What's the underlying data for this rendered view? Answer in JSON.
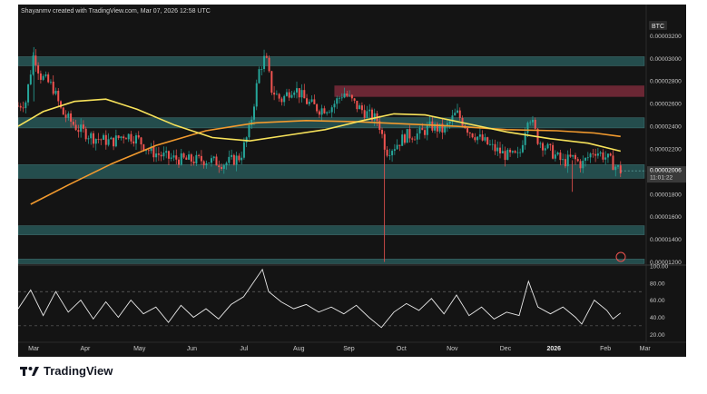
{
  "header": {
    "attribution": "Shayanmv created with TradingView.com, Mar 07, 2026 12:58 UTC"
  },
  "footer": {
    "brand": "TradingView"
  },
  "colors": {
    "background": "#141414",
    "candle_up": "#26a69a",
    "candle_down": "#ef5350",
    "ma_fast": "#f7e25a",
    "ma_slow": "#f29a2e",
    "support_zone": "#2c6b6b",
    "resistance_zone": "#7a2a3a",
    "rsi": "#e8e8e8"
  },
  "chart_data": {
    "type": "line",
    "title": "",
    "series_label": "BTC",
    "x_tick_labels": [
      "Mar",
      "Apr",
      "May",
      "Jun",
      "Jul",
      "Aug",
      "Sep",
      "Oct",
      "Nov",
      "Dec",
      "2026",
      "Feb",
      "Mar"
    ],
    "price_ticks": [
      "0.00003200",
      "0.00003000",
      "0.00002800",
      "0.00002600",
      "0.00002400",
      "0.00002200",
      "0.00001800",
      "0.00001600",
      "0.00001400",
      "0.00001200"
    ],
    "ylim": [
      1.18e-05,
      3.38e-05
    ],
    "last_price": "0.00002006",
    "countdown": "11:01:22",
    "support_zones": [
      [
        2.935e-05,
        3.015e-05
      ],
      [
        2.385e-05,
        2.475e-05
      ],
      [
        1.94e-05,
        2.06e-05
      ],
      [
        1.44e-05,
        1.52e-05
      ],
      [
        1.185e-05,
        1.225e-05
      ]
    ],
    "resistance_zones": [
      [
        2.66e-05,
        2.76e-05
      ]
    ],
    "price_path": [
      {
        "x": 0.0,
        "y": 2.58e-05
      },
      {
        "x": 0.012,
        "y": 2.62e-05
      },
      {
        "x": 0.025,
        "y": 3.05e-05
      },
      {
        "x": 0.035,
        "y": 2.85e-05
      },
      {
        "x": 0.055,
        "y": 2.75e-05
      },
      {
        "x": 0.07,
        "y": 2.52e-05
      },
      {
        "x": 0.095,
        "y": 2.38e-05
      },
      {
        "x": 0.12,
        "y": 2.3e-05
      },
      {
        "x": 0.15,
        "y": 2.26e-05
      },
      {
        "x": 0.17,
        "y": 2.33e-05
      },
      {
        "x": 0.19,
        "y": 2.29e-05
      },
      {
        "x": 0.21,
        "y": 2.18e-05
      },
      {
        "x": 0.24,
        "y": 2.12e-05
      },
      {
        "x": 0.27,
        "y": 2.1e-05
      },
      {
        "x": 0.3,
        "y": 2.1e-05
      },
      {
        "x": 0.33,
        "y": 2.07e-05
      },
      {
        "x": 0.355,
        "y": 2.13e-05
      },
      {
        "x": 0.37,
        "y": 2.38e-05
      },
      {
        "x": 0.385,
        "y": 2.9e-05
      },
      {
        "x": 0.395,
        "y": 3.02e-05
      },
      {
        "x": 0.405,
        "y": 2.72e-05
      },
      {
        "x": 0.42,
        "y": 2.63e-05
      },
      {
        "x": 0.44,
        "y": 2.75e-05
      },
      {
        "x": 0.46,
        "y": 2.62e-05
      },
      {
        "x": 0.48,
        "y": 2.55e-05
      },
      {
        "x": 0.5,
        "y": 2.57e-05
      },
      {
        "x": 0.52,
        "y": 2.7e-05
      },
      {
        "x": 0.54,
        "y": 2.58e-05
      },
      {
        "x": 0.56,
        "y": 2.5e-05
      },
      {
        "x": 0.575,
        "y": 2.45e-05
      },
      {
        "x": 0.588,
        "y": 2.18e-05
      },
      {
        "x": 0.6,
        "y": 2.22e-05
      },
      {
        "x": 0.62,
        "y": 2.32e-05
      },
      {
        "x": 0.64,
        "y": 2.33e-05
      },
      {
        "x": 0.66,
        "y": 2.4e-05
      },
      {
        "x": 0.68,
        "y": 2.36e-05
      },
      {
        "x": 0.7,
        "y": 2.52e-05
      },
      {
        "x": 0.72,
        "y": 2.36e-05
      },
      {
        "x": 0.74,
        "y": 2.28e-05
      },
      {
        "x": 0.76,
        "y": 2.2e-05
      },
      {
        "x": 0.78,
        "y": 2.14e-05
      },
      {
        "x": 0.8,
        "y": 2.13e-05
      },
      {
        "x": 0.815,
        "y": 2.52e-05
      },
      {
        "x": 0.83,
        "y": 2.28e-05
      },
      {
        "x": 0.85,
        "y": 2.18e-05
      },
      {
        "x": 0.87,
        "y": 2.08e-05
      },
      {
        "x": 0.885,
        "y": 2.12e-05
      },
      {
        "x": 0.9,
        "y": 2.06e-05
      },
      {
        "x": 0.92,
        "y": 2.19e-05
      },
      {
        "x": 0.94,
        "y": 2.12e-05
      },
      {
        "x": 0.955,
        "y": 2.04e-05
      },
      {
        "x": 0.962,
        "y": 2.006e-05
      }
    ],
    "ma_fast": [
      {
        "x": 0.0,
        "y": 2.4e-05
      },
      {
        "x": 0.04,
        "y": 2.53e-05
      },
      {
        "x": 0.09,
        "y": 2.62e-05
      },
      {
        "x": 0.14,
        "y": 2.64e-05
      },
      {
        "x": 0.19,
        "y": 2.55e-05
      },
      {
        "x": 0.25,
        "y": 2.41e-05
      },
      {
        "x": 0.31,
        "y": 2.3e-05
      },
      {
        "x": 0.37,
        "y": 2.27e-05
      },
      {
        "x": 0.43,
        "y": 2.32e-05
      },
      {
        "x": 0.49,
        "y": 2.37e-05
      },
      {
        "x": 0.55,
        "y": 2.45e-05
      },
      {
        "x": 0.6,
        "y": 2.51e-05
      },
      {
        "x": 0.65,
        "y": 2.5e-05
      },
      {
        "x": 0.72,
        "y": 2.42e-05
      },
      {
        "x": 0.78,
        "y": 2.35e-05
      },
      {
        "x": 0.85,
        "y": 2.29e-05
      },
      {
        "x": 0.91,
        "y": 2.25e-05
      },
      {
        "x": 0.962,
        "y": 2.18e-05
      }
    ],
    "ma_slow": [
      {
        "x": 0.02,
        "y": 1.71e-05
      },
      {
        "x": 0.08,
        "y": 1.88e-05
      },
      {
        "x": 0.15,
        "y": 2.07e-05
      },
      {
        "x": 0.22,
        "y": 2.23e-05
      },
      {
        "x": 0.3,
        "y": 2.36e-05
      },
      {
        "x": 0.38,
        "y": 2.43e-05
      },
      {
        "x": 0.46,
        "y": 2.45e-05
      },
      {
        "x": 0.54,
        "y": 2.44e-05
      },
      {
        "x": 0.62,
        "y": 2.42e-05
      },
      {
        "x": 0.7,
        "y": 2.4e-05
      },
      {
        "x": 0.78,
        "y": 2.37e-05
      },
      {
        "x": 0.86,
        "y": 2.36e-05
      },
      {
        "x": 0.92,
        "y": 2.34e-05
      },
      {
        "x": 0.962,
        "y": 2.31e-05
      }
    ],
    "rsi": {
      "ticks": [
        "100.00",
        "80.00",
        "60.00",
        "40.00",
        "20.00"
      ],
      "ylim": [
        15,
        100
      ],
      "levels": [
        30,
        70
      ],
      "values": [
        {
          "x": 0.0,
          "y": 50
        },
        {
          "x": 0.02,
          "y": 72
        },
        {
          "x": 0.04,
          "y": 42
        },
        {
          "x": 0.06,
          "y": 70
        },
        {
          "x": 0.08,
          "y": 46
        },
        {
          "x": 0.1,
          "y": 60
        },
        {
          "x": 0.12,
          "y": 38
        },
        {
          "x": 0.14,
          "y": 58
        },
        {
          "x": 0.16,
          "y": 40
        },
        {
          "x": 0.18,
          "y": 60
        },
        {
          "x": 0.2,
          "y": 44
        },
        {
          "x": 0.22,
          "y": 52
        },
        {
          "x": 0.24,
          "y": 34
        },
        {
          "x": 0.26,
          "y": 54
        },
        {
          "x": 0.28,
          "y": 40
        },
        {
          "x": 0.3,
          "y": 50
        },
        {
          "x": 0.32,
          "y": 38
        },
        {
          "x": 0.34,
          "y": 55
        },
        {
          "x": 0.36,
          "y": 64
        },
        {
          "x": 0.375,
          "y": 80
        },
        {
          "x": 0.39,
          "y": 96
        },
        {
          "x": 0.4,
          "y": 70
        },
        {
          "x": 0.42,
          "y": 58
        },
        {
          "x": 0.44,
          "y": 50
        },
        {
          "x": 0.46,
          "y": 55
        },
        {
          "x": 0.48,
          "y": 46
        },
        {
          "x": 0.5,
          "y": 52
        },
        {
          "x": 0.52,
          "y": 44
        },
        {
          "x": 0.54,
          "y": 54
        },
        {
          "x": 0.56,
          "y": 40
        },
        {
          "x": 0.58,
          "y": 28
        },
        {
          "x": 0.6,
          "y": 46
        },
        {
          "x": 0.62,
          "y": 56
        },
        {
          "x": 0.64,
          "y": 48
        },
        {
          "x": 0.66,
          "y": 62
        },
        {
          "x": 0.68,
          "y": 44
        },
        {
          "x": 0.7,
          "y": 66
        },
        {
          "x": 0.72,
          "y": 42
        },
        {
          "x": 0.74,
          "y": 52
        },
        {
          "x": 0.76,
          "y": 38
        },
        {
          "x": 0.78,
          "y": 46
        },
        {
          "x": 0.8,
          "y": 42
        },
        {
          "x": 0.815,
          "y": 82
        },
        {
          "x": 0.83,
          "y": 52
        },
        {
          "x": 0.85,
          "y": 44
        },
        {
          "x": 0.87,
          "y": 52
        },
        {
          "x": 0.89,
          "y": 40
        },
        {
          "x": 0.9,
          "y": 32
        },
        {
          "x": 0.92,
          "y": 60
        },
        {
          "x": 0.94,
          "y": 48
        },
        {
          "x": 0.95,
          "y": 38
        },
        {
          "x": 0.962,
          "y": 45
        }
      ]
    }
  }
}
